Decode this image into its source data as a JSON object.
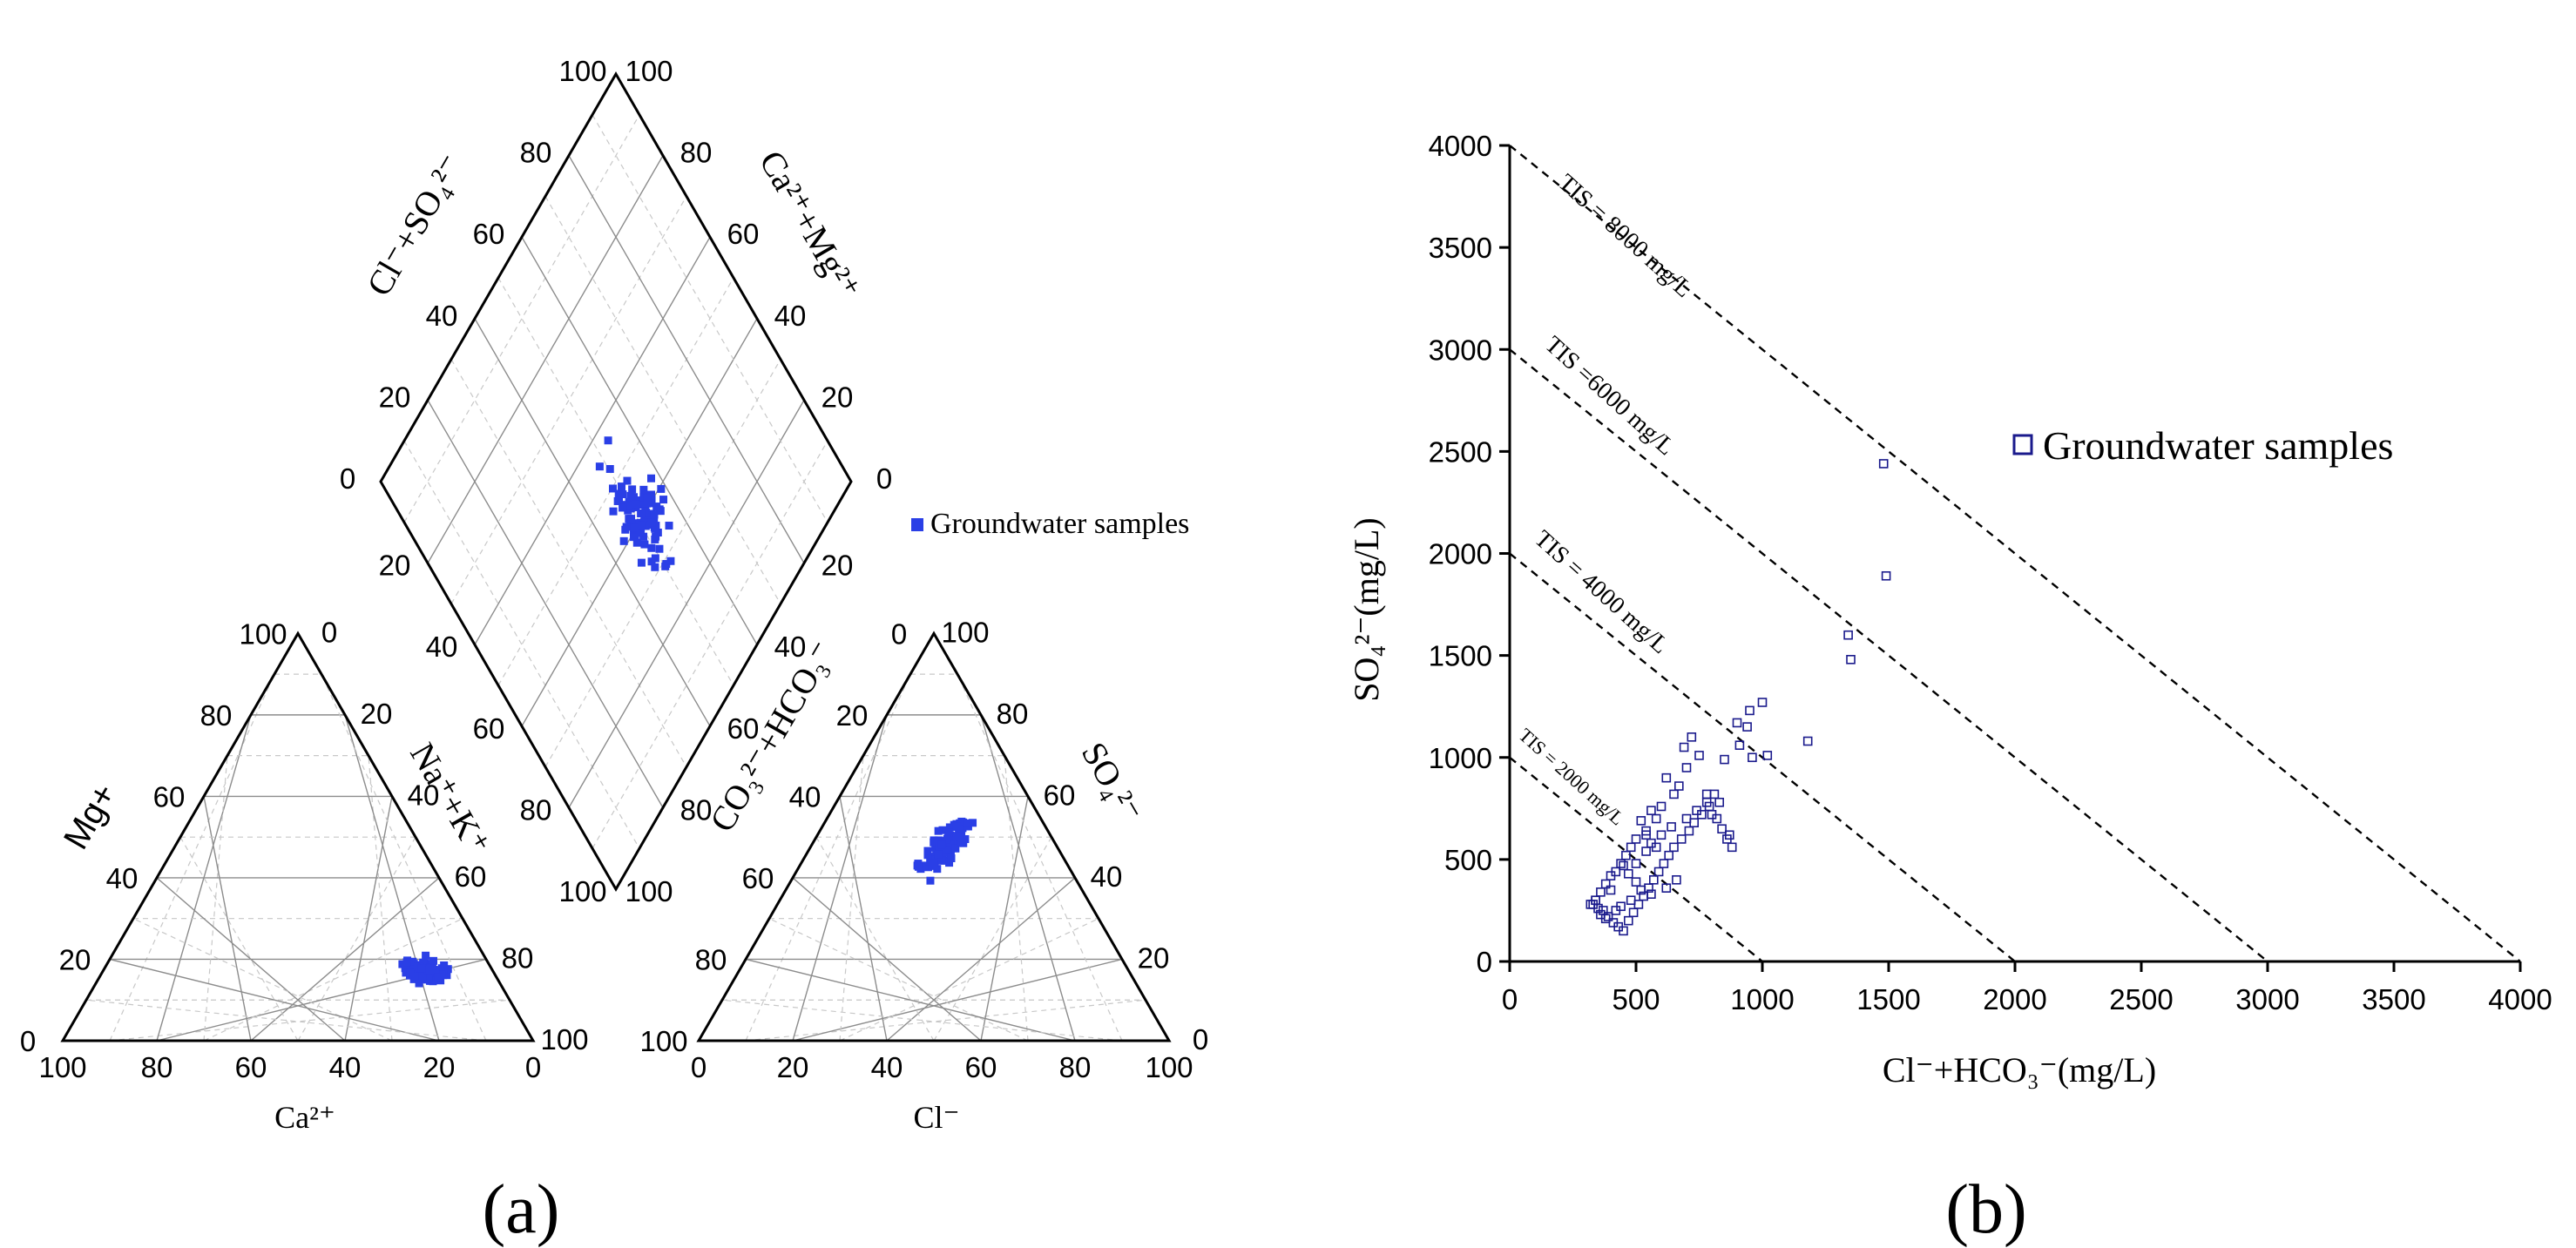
{
  "figure": {
    "panel_a_label": "(a)",
    "panel_b_label": "(b)"
  },
  "piper": {
    "legend_label": "Groundwater samples",
    "cation_triangle": {
      "mg_label": "Mg+",
      "na_k_label": "Na⁺+K⁺",
      "ca_label": "Ca²⁺"
    },
    "anion_triangle": {
      "so4_label": "SO₄²⁻",
      "co3_hco3_label": "CO₃²⁻+HCO₃⁻",
      "cl_label": "Cl⁻"
    },
    "diamond": {
      "cl_so4_label": "Cl⁻+SO₄²⁻",
      "ca_mg_label": "Ca²⁺+Mg²⁺"
    },
    "tick_labels": [
      "0",
      "20",
      "40",
      "60",
      "80",
      "100"
    ]
  },
  "scatter": {
    "legend_label": "Groundwater samples",
    "tis_labels": [
      "TIS = 8000 mg/L",
      "TIS =6000 mg/L",
      "TIS = 4000 mg/L",
      "TIS = 2000 mg/L"
    ]
  },
  "chart_data": [
    {
      "type": "scatter",
      "subtype": "piper-cation-triangle",
      "title": "",
      "xlabel": "Ca²⁺",
      "ylabel": "Mg+",
      "axis3_label": "Na⁺+K⁺",
      "axis_range": [
        0,
        100
      ],
      "series": [
        {
          "name": "Groundwater samples",
          "ca": [
            16.9,
            15.6,
            13.1,
            11.3,
            13.0,
            14.9,
            15.2,
            16.8,
            14.3,
            18.3,
            17.6,
            10.5,
            13.8,
            14.6,
            18.4,
            10.3,
            16.9,
            16.1,
            9.3,
            16.2,
            13.7,
            14.9,
            13.3,
            13.5,
            18.7,
            14.4,
            16.2,
            13.0,
            11.4,
            16.1,
            13.9,
            15.1,
            12.9,
            12.3,
            13.0,
            16.4,
            14.5,
            12.5,
            13.6,
            13.1,
            13.8,
            15.7,
            12.1,
            14.1,
            9.7,
            15.8,
            16.5,
            14.1,
            12.2,
            12.4,
            11.1,
            13.9,
            10.4,
            14.8,
            15.9,
            14.1,
            11.7,
            14.0,
            13.0,
            17.2,
            15.2,
            13.7,
            13.8,
            16.0,
            18.2,
            14.5,
            17.7,
            13.2,
            15.9,
            14.0,
            11.0,
            15.5,
            17.8,
            14.8,
            13.6,
            14.5,
            13.7,
            11.3,
            14.7,
            12.1,
            15.4,
            17.2,
            14.2,
            16.6,
            15.5,
            12.4,
            17.4,
            13.7,
            15.1,
            14.8
          ],
          "mg": [
            17.4,
            17.1,
            17.7,
            16.7,
            18.7,
            17.8,
            18.4,
            15.3,
            16.1,
            17.8,
            16.1,
            17.8,
            17.1,
            14.7,
            18.8,
            16.1,
            19.7,
            15.0,
            17.6,
            16.3,
            17.3,
            17.2,
            16.9,
            19.0,
            16.7,
            18.0,
            17.3,
            18.9,
            19.6,
            17.3,
            16.3,
            16.5,
            16.5,
            14.8,
            17.7,
            18.9,
            14.7,
            17.4,
            18.4,
            18.3,
            19.2,
            17.4,
            18.6,
            14.7,
            18.5,
            15.1,
            16.1,
            17.7,
            16.7,
            20.9,
            16.1,
            14.9,
            17.5,
            18.3,
            18.9,
            15.3,
            16.8,
            15.8,
            15.5,
            14.1,
            15.3,
            17.9,
            15.0,
            17.3,
            16.0,
            15.5,
            16.7,
            17.8,
            19.4,
            14.6,
            17.3,
            16.6,
            15.1,
            18.6,
            15.0,
            15.5,
            16.6,
            16.2,
            15.2,
            17.4,
            18.2,
            19.3,
            18.6,
            15.2,
            15.9,
            15.7,
            15.8,
            17.4,
            18.1,
            17.8
          ]
        }
      ]
    },
    {
      "type": "scatter",
      "subtype": "piper-anion-triangle",
      "title": "",
      "xlabel": "Cl⁻",
      "ylabel": "CO₃²⁻+HCO₃⁻",
      "axis3_label": "SO₄²⁻",
      "axis_range": [
        0,
        100
      ],
      "series": [
        {
          "name": "Groundwater samples",
          "cl": [
            27.3,
            26.1,
            28.2,
            30.6,
            28.2,
            29.6,
            28.1,
            28.3,
            27.4,
            27.5,
            31.4,
            26.6,
            28.1,
            28.7,
            25.7,
            26.0,
            30.3,
            25.4,
            27.2,
            30.1,
            28.6,
            31.5,
            25.6,
            27.4,
            27.3,
            30.2,
            31.9,
            26.4,
            29.8,
            28.9,
            28.3,
            29.2,
            29.8,
            28.2,
            29.6,
            29.0,
            26.3,
            28.2,
            30.0,
            28.9,
            31.0,
            25.0,
            32.0,
            29.6,
            28.1,
            27.6,
            28.3,
            30.7,
            29.4,
            26.3,
            27.5,
            28.3,
            26.5,
            30.2,
            27.3,
            27.6,
            27.8,
            28.1,
            29.8,
            28.2,
            29.9,
            27.8,
            30.3,
            28.8,
            29.6,
            28.1,
            27.7,
            27.0,
            29.0,
            25.9,
            29.4,
            27.3,
            29.6,
            28.1,
            25.4,
            28.6,
            29.5,
            25.4,
            30.5,
            28.1,
            27.7,
            28.1,
            29.3,
            31.0,
            31.6,
            27.6,
            29.7,
            25.2,
            24.9,
            31.3
          ],
          "so4": [
            44.6,
            42.2,
            42.9,
            50.1,
            53.2,
            39.3,
            48.4,
            50.4,
            47.4,
            45.1,
            43.7,
            47.4,
            49.0,
            45.3,
            48.8,
            51.7,
            51.1,
            49.2,
            52.4,
            49.8,
            50.1,
            53.5,
            48.7,
            46.2,
            45.2,
            44.2,
            49.5,
            49.2,
            49.1,
            48.8,
            48.6,
            52.6,
            46.6,
            49.1,
            47.1,
            45.7,
            48.8,
            49.1,
            52.2,
            50.1,
            52.6,
            43.0,
            48.5,
            42.2,
            46.0,
            48.2,
            43.8,
            45.8,
            53.6,
            48.8,
            42.6,
            44.8,
            43.0,
            48.2,
            44.0,
            48.5,
            53.0,
            49.8,
            47.8,
            48.6,
            46.1,
            44.2,
            50.4,
            53.4,
            44.2,
            45.8,
            44.5,
            44.4,
            53.8,
            45.6,
            51.8,
            47.7,
            48.4,
            45.8,
            42.7,
            52.5,
            48.1,
            46.6,
            53.4,
            43.7,
            51.0,
            49.5,
            46.8,
            47.2,
            48.7,
            48.2,
            50.3,
            51.5,
            43.5,
            44.8
          ]
        }
      ]
    },
    {
      "type": "scatter",
      "subtype": "piper-diamond",
      "title": "",
      "xlabel": "Ca²⁺+Mg²⁺",
      "ylabel": "Cl⁻+SO₄²⁻",
      "axis_range": [
        0,
        100
      ],
      "series": [
        {
          "name": "Groundwater samples",
          "ca_mg": [
            55.3,
            49.8,
            56.7,
            42.3,
            46.9,
            43.9,
            52.8,
            42.9,
            40.2,
            38.4,
            39.7,
            47.4,
            39.9,
            39.3,
            45.6,
            40.4,
            47.2,
            47.9,
            39.7,
            38.8,
            42.1,
            32.6,
            41.6,
            34.6,
            45.5,
            40.9,
            39.0,
            36.9,
            40.0,
            31.2,
            38.2,
            37.8,
            36.2,
            42.7,
            40.4,
            42.2,
            34.8,
            39.1,
            44.7,
            44.3,
            28.6,
            38.0,
            48.2,
            43.9,
            39.2,
            42.6,
            40.2,
            37.3,
            32.2,
            36.1,
            40.5,
            43.1,
            41.0,
            37.3,
            39.5,
            40.8,
            33.3,
            32.5,
            47.0,
            39.9,
            42.5,
            42.2,
            36.2,
            43.5,
            34.6,
            29.1,
            37.4,
            39.4,
            40.1,
            41.7,
            44.3,
            42.2,
            34.8,
            38.3,
            39.8,
            35.9,
            45.1,
            37.3,
            40.8,
            37.3,
            47.7,
            42.1,
            38.4,
            29.2,
            45.4,
            39.2,
            42.9,
            41.4,
            37.7,
            34.3
          ],
          "cl_so4": [
            48.4,
            48.5,
            53.4,
            52.0,
            45.8,
            49.9,
            50.3,
            57.9,
            52.7,
            53.7,
            50.2,
            48.7,
            47.5,
            49.1,
            52.5,
            48.2,
            48.0,
            49.1,
            51.8,
            51.8,
            53.9,
            47.8,
            47.5,
            45.5,
            48.8,
            55.9,
            51.0,
            55.9,
            48.0,
            47.8,
            50.9,
            54.1,
            48.4,
            48.2,
            49.4,
            46.7,
            52.7,
            50.1,
            50.3,
            51.9,
            51.9,
            47.0,
            50.6,
            49.0,
            47.4,
            51.1,
            55.4,
            53.5,
            49.0,
            53.1,
            48.2,
            54.9,
            44.4,
            52.1,
            58.7,
            53.8,
            55.9,
            51.0,
            49.9,
            54.8,
            52.9,
            48.7,
            52.6,
            49.9,
            51.2,
            50.1,
            49.1,
            47.0,
            54.6,
            52.9,
            49.8,
            54.0,
            51.7,
            55.6,
            52.6,
            52.5,
            51.4,
            55.9,
            51.4,
            52.6,
            52.5,
            46.1,
            49.0,
            50.6,
            48.2,
            50.1,
            51.5,
            54.6,
            57.9,
            49.4
          ]
        }
      ]
    },
    {
      "type": "scatter",
      "title": "",
      "xlabel": "Cl⁻+HCO₃⁻(mg/L)",
      "ylabel": "SO₄²⁻(mg/L)",
      "xlim": [
        0,
        4000
      ],
      "ylim": [
        0,
        4000
      ],
      "xticks": [
        0,
        500,
        1000,
        1500,
        2000,
        2500,
        3000,
        3500,
        4000
      ],
      "yticks": [
        0,
        500,
        1000,
        1500,
        2000,
        2500,
        3000,
        3500,
        4000
      ],
      "reference_lines": [
        {
          "label": "TIS = 8000 mg/L",
          "sum": 4000
        },
        {
          "label": "TIS =6000 mg/L",
          "sum": 3000
        },
        {
          "label": "TIS = 4000 mg/L",
          "sum": 2000
        },
        {
          "label": "TIS = 2000 mg/L",
          "sum": 1000
        }
      ],
      "series": [
        {
          "name": "Groundwater samples",
          "x": [
            1480,
            1490,
            1340,
            1350,
            1000,
            1020,
            1180,
            950,
            900,
            910,
            940,
            960,
            850,
            830,
            780,
            800,
            870,
            750,
            720,
            690,
            700,
            670,
            650,
            620,
            600,
            580,
            560,
            540,
            520,
            500,
            480,
            460,
            440,
            420,
            400,
            380,
            360,
            340,
            330,
            350,
            370,
            390,
            410,
            430,
            450,
            470,
            490,
            510,
            530,
            550,
            570,
            590,
            610,
            630,
            650,
            680,
            710,
            730,
            760,
            790,
            820,
            840,
            860,
            880,
            540,
            560,
            600,
            640,
            700,
            740,
            780,
            810,
            450,
            470,
            500,
            520,
            560,
            620,
            660,
            360,
            380,
            420,
            440,
            480,
            500,
            580,
            540,
            320,
            340,
            400
          ],
          "y": [
            2440,
            1890,
            1600,
            1480,
            1270,
            1010,
            1080,
            1230,
            1170,
            1060,
            1150,
            1000,
            990,
            780,
            820,
            720,
            620,
            1010,
            1100,
            1050,
            950,
            860,
            820,
            900,
            760,
            700,
            740,
            640,
            690,
            600,
            560,
            520,
            480,
            440,
            420,
            380,
            340,
            300,
            280,
            260,
            250,
            220,
            190,
            170,
            150,
            200,
            240,
            280,
            320,
            360,
            400,
            440,
            480,
            520,
            560,
            600,
            640,
            680,
            720,
            760,
            700,
            650,
            600,
            560,
            540,
            580,
            620,
            660,
            700,
            740,
            780,
            820,
            470,
            430,
            390,
            350,
            330,
            360,
            400,
            230,
            210,
            250,
            270,
            300,
            480,
            560,
            620,
            280,
            300,
            350
          ]
        }
      ]
    }
  ]
}
